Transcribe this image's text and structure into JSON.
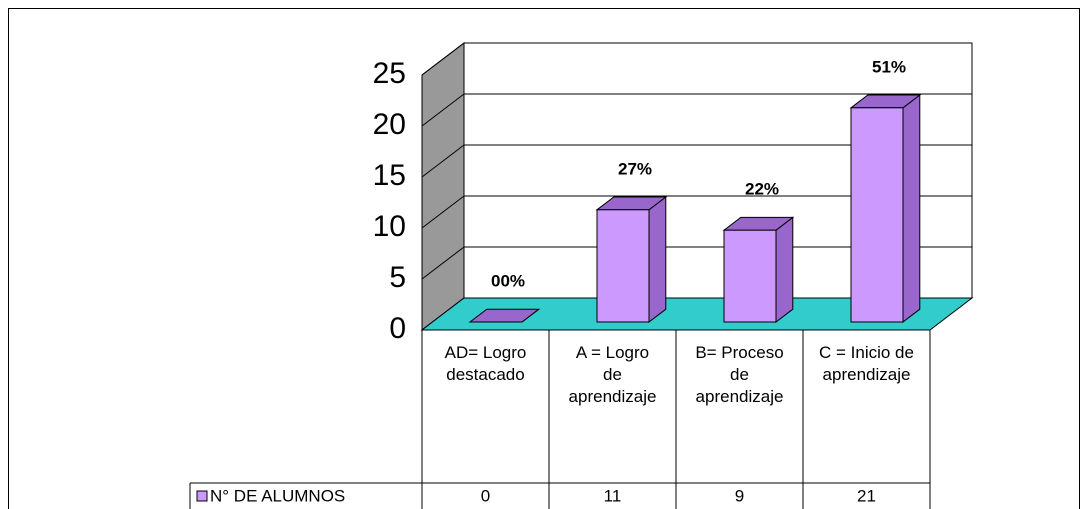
{
  "chart_data": {
    "type": "bar",
    "categories": [
      "AD= Logro destacado",
      "A = Logro de aprendizaje",
      "B= Proceso de aprendizaje",
      "C = Inicio de aprendizaje"
    ],
    "series": [
      {
        "name": "N° DE ALUMNOS",
        "color": "#cc99ff",
        "values": [
          0,
          11,
          9,
          21
        ]
      }
    ],
    "data_labels": [
      "00%",
      "27%",
      "22%",
      "51%"
    ],
    "ylim": [
      0,
      25
    ],
    "yticks": [
      0,
      5,
      10,
      15,
      20,
      25
    ],
    "grid": true,
    "wall_color": "#999999",
    "floor_color": "#33cccc",
    "side_color": "#9966cc"
  }
}
